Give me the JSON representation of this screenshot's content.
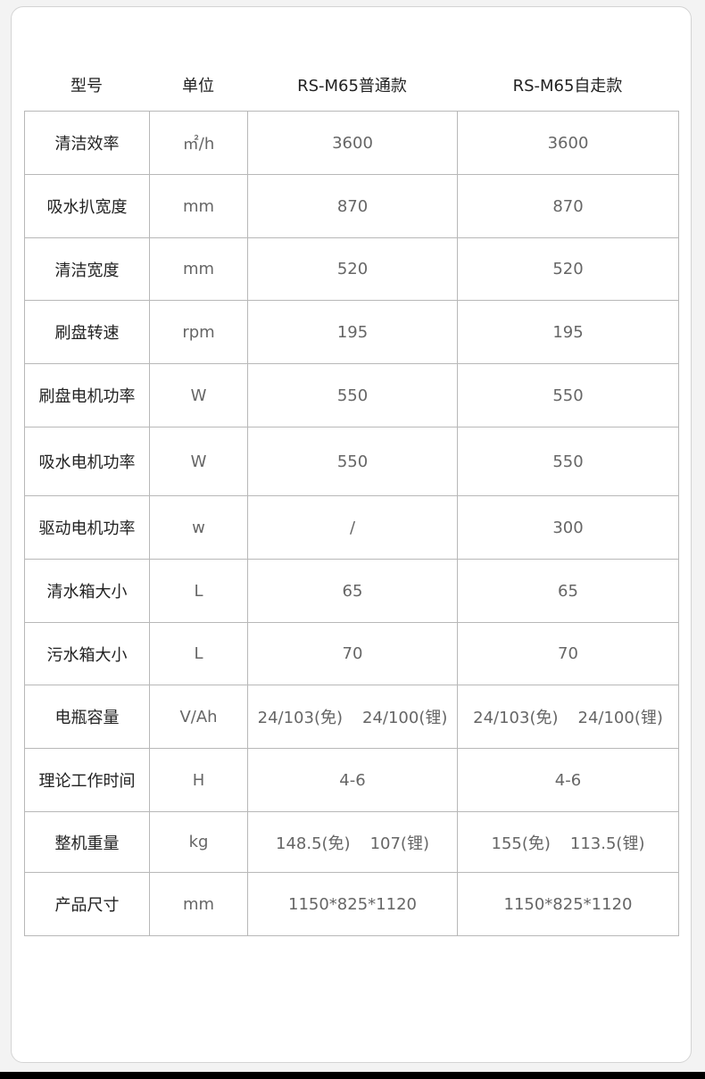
{
  "header": {
    "model": "型号",
    "unit": "单位",
    "col1": "RS-M65普通款",
    "col2": "RS-M65自走款"
  },
  "rows": [
    {
      "label": "清洁效率",
      "unit": "㎡/h",
      "v1": "3600",
      "v2": "3600"
    },
    {
      "label": "吸水扒宽度",
      "unit": "mm",
      "v1": "870",
      "v2": "870"
    },
    {
      "label": "清洁宽度",
      "unit": "mm",
      "v1": "520",
      "v2": "520"
    },
    {
      "label": "刷盘转速",
      "unit": "rpm",
      "v1": "195",
      "v2": "195"
    },
    {
      "label": "刷盘电机功率",
      "unit": "W",
      "v1": "550",
      "v2": "550"
    },
    {
      "label": "吸水电机功率",
      "unit": "W",
      "v1": "550",
      "v2": "550"
    },
    {
      "label": "驱动电机功率",
      "unit": "w",
      "v1": "/",
      "v2": "300"
    },
    {
      "label": "清水箱大小",
      "unit": "L",
      "v1": "65",
      "v2": "65"
    },
    {
      "label": "污水箱大小",
      "unit": "L",
      "v1": "70",
      "v2": "70"
    },
    {
      "label": "电瓶容量",
      "unit": "V/Ah",
      "v1a": "24/103(免)",
      "v1b": "24/100(锂)",
      "v2a": "24/103(免)",
      "v2b": "24/100(锂)"
    },
    {
      "label": "理论工作时间",
      "unit": "H",
      "v1": "4-6",
      "v2": "4-6"
    },
    {
      "label": "整机重量",
      "unit": "kg",
      "v1a": "148.5(免)",
      "v1b": "107(锂)",
      "v2a": "155(免)",
      "v2b": "113.5(锂)"
    },
    {
      "label": "产品尺寸",
      "unit": "mm",
      "v1": "1150*825*1120",
      "v2": "1150*825*1120"
    }
  ]
}
